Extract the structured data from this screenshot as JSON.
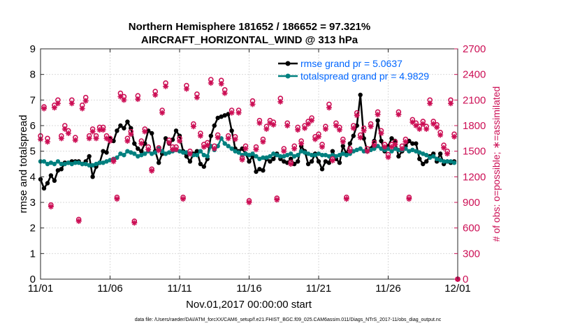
{
  "chart_data": {
    "type": "line",
    "title_line1": "Northern Hemisphere 181652 / 186652 = 97.321%",
    "title_line2": "AIRCRAFT_HORIZONTAL_WIND @ 313 hPa",
    "xlabel": "Nov.01,2017 00:00:00 start",
    "ylabel_left": "rmse and totalspread",
    "ylabel_right": "# of obs: o=possible; ∗=assimilated",
    "footnote": "data file: /Users/raeder/DAI/ATM_forcXX/CAM6_setup/f.e21.FHIST_BGC.f09_025.CAM6assim.011/Diags_NTrS_2017-11/obs_diag_output.nc",
    "xlim": [
      0,
      30
    ],
    "ylim_left": [
      0,
      9
    ],
    "ylim_right": [
      0,
      2700
    ],
    "x_ticks": [
      0,
      5,
      10,
      15,
      20,
      25,
      30
    ],
    "x_tick_labels": [
      "11/01",
      "11/06",
      "11/11",
      "11/16",
      "11/21",
      "11/26",
      "12/01"
    ],
    "y_ticks_left": [
      0,
      1,
      2,
      3,
      4,
      5,
      6,
      7,
      8,
      9
    ],
    "y_ticks_right": [
      0,
      300,
      600,
      900,
      1200,
      1500,
      1800,
      2100,
      2400,
      2700
    ],
    "colors": {
      "rmse": "#000000",
      "spread": "#00807f",
      "obs": "#cc0f55",
      "legend_text": "#0066ff"
    },
    "series": [
      {
        "name": "rmse grand pr = 5.0637",
        "key": "rmse",
        "x": [
          0.0,
          0.25,
          0.5,
          0.75,
          1.0,
          1.25,
          1.5,
          1.75,
          2.0,
          2.25,
          2.5,
          2.75,
          3.0,
          3.25,
          3.5,
          3.75,
          4.0,
          4.25,
          4.5,
          4.75,
          5.0,
          5.25,
          5.5,
          5.75,
          6.0,
          6.25,
          6.5,
          6.75,
          7.0,
          7.25,
          7.5,
          7.75,
          8.0,
          8.25,
          8.5,
          8.75,
          9.0,
          9.25,
          9.5,
          9.75,
          10.0,
          10.25,
          10.5,
          10.75,
          11.0,
          11.25,
          11.5,
          11.75,
          12.0,
          12.25,
          12.5,
          12.75,
          13.0,
          13.25,
          13.5,
          13.75,
          14.0,
          14.25,
          14.5,
          14.75,
          15.0,
          15.25,
          15.5,
          15.75,
          16.0,
          16.25,
          16.5,
          16.75,
          17.0,
          17.25,
          17.5,
          17.75,
          18.0,
          18.25,
          18.5,
          18.75,
          19.0,
          19.25,
          19.5,
          19.75,
          20.0,
          20.25,
          20.5,
          20.75,
          21.0,
          21.25,
          21.5,
          21.75,
          22.0,
          22.25,
          22.5,
          22.75,
          23.0,
          23.25,
          23.5,
          23.75,
          24.0,
          24.25,
          24.5,
          24.75,
          25.0,
          25.25,
          25.5,
          25.75,
          26.0,
          26.25,
          26.5,
          26.75,
          27.0,
          27.25,
          27.5,
          27.75,
          28.0,
          28.25,
          28.5,
          28.75,
          29.0,
          29.25,
          29.5,
          29.75
        ],
        "values": [
          3.9,
          3.55,
          3.75,
          4.05,
          3.85,
          4.25,
          4.3,
          4.55,
          4.55,
          4.6,
          4.6,
          4.6,
          4.5,
          4.6,
          4.8,
          4.0,
          4.4,
          4.55,
          5.0,
          4.95,
          5.5,
          5.4,
          5.8,
          6.0,
          5.9,
          6.15,
          5.9,
          5.3,
          5.1,
          5.0,
          5.3,
          5.8,
          5.7,
          5.0,
          4.55,
          4.9,
          5.5,
          5.3,
          5.45,
          5.8,
          5.6,
          5.0,
          4.8,
          4.6,
          4.9,
          5.0,
          4.5,
          4.4,
          4.7,
          5.6,
          6.0,
          6.3,
          6.35,
          6.4,
          6.45,
          5.8,
          5.1,
          5.0,
          5.1,
          4.9,
          4.6,
          4.8,
          4.2,
          4.3,
          4.25,
          4.7,
          4.6,
          4.7,
          4.9,
          4.7,
          4.6,
          4.55,
          4.7,
          4.5,
          4.6,
          5.2,
          5.0,
          4.5,
          4.6,
          4.9,
          4.6,
          4.3,
          4.6,
          4.55,
          5.0,
          4.7,
          4.55,
          5.2,
          4.9,
          5.3,
          5.6,
          6.0,
          7.2,
          5.5,
          5.0,
          5.1,
          5.4,
          6.2,
          5.4,
          5.0,
          5.2,
          5.5,
          5.4,
          4.8,
          5.0,
          5.2,
          5.4,
          5.3,
          5.3,
          4.7,
          4.5,
          4.6,
          4.8,
          4.9,
          4.6,
          4.9,
          4.5,
          4.6,
          4.55,
          4.6
        ]
      },
      {
        "name": "totalspread grand pr = 4.9829",
        "key": "spread",
        "x": [
          0.0,
          0.25,
          0.5,
          0.75,
          1.0,
          1.25,
          1.5,
          1.75,
          2.0,
          2.25,
          2.5,
          2.75,
          3.0,
          3.25,
          3.5,
          3.75,
          4.0,
          4.25,
          4.5,
          4.75,
          5.0,
          5.25,
          5.5,
          5.75,
          6.0,
          6.25,
          6.5,
          6.75,
          7.0,
          7.25,
          7.5,
          7.75,
          8.0,
          8.25,
          8.5,
          8.75,
          9.0,
          9.25,
          9.5,
          9.75,
          10.0,
          10.25,
          10.5,
          10.75,
          11.0,
          11.25,
          11.5,
          11.75,
          12.0,
          12.25,
          12.5,
          12.75,
          13.0,
          13.25,
          13.5,
          13.75,
          14.0,
          14.25,
          14.5,
          14.75,
          15.0,
          15.25,
          15.5,
          15.75,
          16.0,
          16.25,
          16.5,
          16.75,
          17.0,
          17.25,
          17.5,
          17.75,
          18.0,
          18.25,
          18.5,
          18.75,
          19.0,
          19.25,
          19.5,
          19.75,
          20.0,
          20.25,
          20.5,
          20.75,
          21.0,
          21.25,
          21.5,
          21.75,
          22.0,
          22.25,
          22.5,
          22.75,
          23.0,
          23.25,
          23.5,
          23.75,
          24.0,
          24.25,
          24.5,
          24.75,
          25.0,
          25.25,
          25.5,
          25.75,
          26.0,
          26.25,
          26.5,
          26.75,
          27.0,
          27.25,
          27.5,
          27.75,
          28.0,
          28.25,
          28.5,
          28.75,
          29.0,
          29.25,
          29.5,
          29.75
        ],
        "values": [
          4.6,
          4.6,
          4.5,
          4.55,
          4.5,
          4.6,
          4.5,
          4.5,
          4.55,
          4.5,
          4.55,
          4.55,
          4.5,
          4.5,
          4.45,
          4.45,
          4.5,
          4.55,
          4.55,
          4.6,
          4.65,
          4.7,
          4.75,
          4.9,
          4.85,
          5.0,
          4.95,
          4.9,
          4.8,
          4.85,
          4.9,
          5.0,
          4.9,
          4.95,
          5.1,
          5.0,
          4.9,
          4.95,
          5.0,
          5.05,
          5.0,
          4.95,
          4.95,
          4.9,
          4.85,
          4.85,
          5.0,
          4.85,
          4.8,
          5.2,
          5.05,
          5.2,
          5.5,
          5.3,
          5.2,
          5.1,
          5.0,
          4.95,
          4.85,
          4.9,
          4.85,
          4.9,
          4.8,
          4.7,
          4.75,
          4.75,
          4.8,
          4.9,
          4.85,
          4.8,
          4.8,
          4.85,
          4.9,
          4.8,
          4.85,
          5.0,
          4.95,
          4.9,
          4.85,
          4.85,
          4.9,
          4.85,
          4.85,
          4.8,
          4.85,
          4.8,
          4.85,
          4.9,
          4.85,
          4.9,
          5.0,
          5.05,
          5.1,
          5.0,
          5.0,
          5.05,
          5.1,
          5.2,
          5.1,
          5.05,
          5.1,
          5.0,
          5.1,
          5.05,
          5.05,
          5.1,
          5.0,
          5.05,
          5.0,
          4.95,
          4.9,
          4.85,
          4.75,
          4.8,
          4.7,
          4.65,
          4.6,
          4.6,
          4.6,
          4.55
        ]
      },
      {
        "name": "obs possible",
        "key": "possible",
        "x": [
          0.0,
          0.25,
          0.5,
          0.75,
          1.0,
          1.25,
          1.5,
          1.75,
          2.0,
          2.25,
          2.5,
          2.75,
          3.0,
          3.25,
          3.5,
          3.75,
          4.0,
          4.25,
          4.5,
          4.75,
          5.0,
          5.25,
          5.5,
          5.75,
          6.0,
          6.25,
          6.5,
          6.75,
          7.0,
          7.25,
          7.5,
          7.75,
          8.0,
          8.25,
          8.5,
          8.75,
          9.0,
          9.25,
          9.5,
          9.75,
          10.0,
          10.25,
          10.5,
          10.75,
          11.0,
          11.25,
          11.5,
          11.75,
          12.0,
          12.25,
          12.5,
          12.75,
          13.0,
          13.25,
          13.5,
          13.75,
          14.0,
          14.25,
          14.5,
          14.75,
          15.0,
          15.25,
          15.5,
          15.75,
          16.0,
          16.25,
          16.5,
          16.75,
          17.0,
          17.25,
          17.5,
          17.75,
          18.0,
          18.25,
          18.5,
          18.75,
          19.0,
          19.25,
          19.5,
          19.75,
          20.0,
          20.25,
          20.5,
          20.75,
          21.0,
          21.25,
          21.5,
          21.75,
          22.0,
          22.25,
          22.5,
          22.75,
          23.0,
          23.25,
          23.5,
          23.75,
          24.0,
          24.25,
          24.5,
          24.75,
          25.0,
          25.25,
          25.5,
          25.75,
          26.0,
          26.25,
          26.5,
          26.75,
          27.0,
          27.25,
          27.5,
          27.75,
          28.0,
          28.25,
          28.5,
          28.75,
          29.0,
          29.25,
          29.5,
          29.75
        ],
        "values": [
          1680,
          2020,
          1650,
          870,
          2040,
          2100,
          1680,
          1800,
          1740,
          2100,
          1660,
          700,
          2040,
          2130,
          1680,
          1760,
          1680,
          1780,
          1780,
          1680,
          1650,
          1400,
          960,
          2180,
          2140,
          1650,
          1730,
          680,
          2150,
          1620,
          1760,
          1550,
          1290,
          2200,
          1540,
          1980,
          2300,
          1630,
          1550,
          1550,
          1650,
          960,
          2270,
          1500,
          1820,
          2170,
          1710,
          1580,
          1600,
          2340,
          1560,
          1690,
          2330,
          2220,
          1680,
          1980,
          1670,
          1980,
          1420,
          1560,
          920,
          2090,
          1550,
          1860,
          1640,
          1790,
          1860,
          1840,
          950,
          2120,
          1530,
          1830,
          1370,
          1560,
          1780,
          1620,
          1800,
          1850,
          1890,
          1670,
          1700,
          1580,
          1790,
          2050,
          1410,
          1830,
          1780,
          1640,
          960,
          1530,
          1800,
          1950,
          1690,
          1770,
          1530,
          1820,
          1600,
          1960,
          1740,
          1580,
          1460,
          1580,
          1610,
          1960,
          1560,
          1640,
          960,
          1870,
          1830,
          1790,
          1850,
          1790,
          2100,
          1850,
          1810,
          1720,
          1570,
          1500,
          2100,
          1700
        ]
      },
      {
        "name": "obs assimilated",
        "key": "assimilated",
        "x": [
          0.0,
          0.25,
          0.5,
          0.75,
          1.0,
          1.25,
          1.5,
          1.75,
          2.0,
          2.25,
          2.5,
          2.75,
          3.0,
          3.25,
          3.5,
          3.75,
          4.0,
          4.25,
          4.5,
          4.75,
          5.0,
          5.25,
          5.5,
          5.75,
          6.0,
          6.25,
          6.5,
          6.75,
          7.0,
          7.25,
          7.5,
          7.75,
          8.0,
          8.25,
          8.5,
          8.75,
          9.0,
          9.25,
          9.5,
          9.75,
          10.0,
          10.25,
          10.5,
          10.75,
          11.0,
          11.25,
          11.5,
          11.75,
          12.0,
          12.25,
          12.5,
          12.75,
          13.0,
          13.25,
          13.5,
          13.75,
          14.0,
          14.25,
          14.5,
          14.75,
          15.0,
          15.25,
          15.5,
          15.75,
          16.0,
          16.25,
          16.5,
          16.75,
          17.0,
          17.25,
          17.5,
          17.75,
          18.0,
          18.25,
          18.5,
          18.75,
          19.0,
          19.25,
          19.5,
          19.75,
          20.0,
          20.25,
          20.5,
          20.75,
          21.0,
          21.25,
          21.5,
          21.75,
          22.0,
          22.25,
          22.5,
          22.75,
          23.0,
          23.25,
          23.5,
          23.75,
          24.0,
          24.25,
          24.5,
          24.75,
          25.0,
          25.25,
          25.5,
          25.75,
          26.0,
          26.25,
          26.5,
          26.75,
          27.0,
          27.25,
          27.5,
          27.75,
          28.0,
          28.25,
          28.5,
          28.75,
          29.0,
          29.25,
          29.5,
          29.75
        ],
        "values": [
          1640,
          2000,
          1610,
          850,
          2010,
          2060,
          1650,
          1760,
          1710,
          2060,
          1630,
          680,
          2000,
          2090,
          1650,
          1730,
          1650,
          1750,
          1750,
          1650,
          1620,
          1380,
          940,
          2140,
          2100,
          1620,
          1700,
          660,
          2110,
          1590,
          1730,
          1520,
          1270,
          2160,
          1510,
          1950,
          2260,
          1600,
          1520,
          1520,
          1620,
          940,
          2230,
          1470,
          1790,
          2130,
          1680,
          1550,
          1570,
          2300,
          1530,
          1660,
          2290,
          2180,
          1650,
          1950,
          1640,
          1950,
          1400,
          1530,
          900,
          2050,
          1520,
          1830,
          1610,
          1760,
          1830,
          1810,
          930,
          2080,
          1500,
          1800,
          1350,
          1530,
          1750,
          1590,
          1770,
          1820,
          1860,
          1640,
          1670,
          1550,
          1760,
          2010,
          1390,
          1800,
          1750,
          1610,
          940,
          1500,
          1770,
          1920,
          1660,
          1740,
          1500,
          1790,
          1570,
          1930,
          1710,
          1550,
          1430,
          1550,
          1580,
          1930,
          1530,
          1610,
          940,
          1840,
          1800,
          1760,
          1820,
          1760,
          2060,
          1820,
          1780,
          1690,
          1540,
          1470,
          2060,
          1670
        ]
      }
    ],
    "extra_points": [
      {
        "key": "possible",
        "x": 30,
        "value": 0
      },
      {
        "key": "assimilated",
        "x": 30,
        "value": 0
      }
    ]
  }
}
